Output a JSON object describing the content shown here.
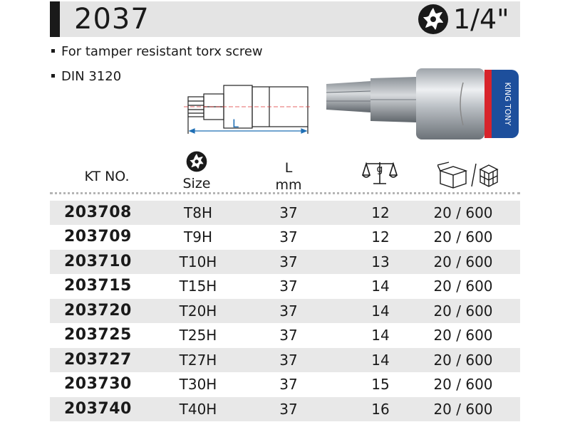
{
  "header": {
    "product_number": "2037",
    "drive_size": "1/4\""
  },
  "features": [
    "For tamper resistant torx screw",
    "DIN 3120"
  ],
  "drawing": {
    "dimension_label": "L"
  },
  "photo": {
    "brand_text": "KING TONY"
  },
  "table": {
    "headers": {
      "kt_no": "KT NO.",
      "size": "Size",
      "length_symbol": "L",
      "length_unit": "mm",
      "weight_symbol": "g",
      "packing_icon": "box-and-carton-icon"
    },
    "rows": [
      {
        "kt_no": "203708",
        "size": "T8H",
        "length": "37",
        "weight": "12",
        "pack": "20 / 600"
      },
      {
        "kt_no": "203709",
        "size": "T9H",
        "length": "37",
        "weight": "12",
        "pack": "20 / 600"
      },
      {
        "kt_no": "203710",
        "size": "T10H",
        "length": "37",
        "weight": "13",
        "pack": "20 / 600"
      },
      {
        "kt_no": "203715",
        "size": "T15H",
        "length": "37",
        "weight": "14",
        "pack": "20 / 600"
      },
      {
        "kt_no": "203720",
        "size": "T20H",
        "length": "37",
        "weight": "14",
        "pack": "20 / 600"
      },
      {
        "kt_no": "203725",
        "size": "T25H",
        "length": "37",
        "weight": "14",
        "pack": "20 / 600"
      },
      {
        "kt_no": "203727",
        "size": "T27H",
        "length": "37",
        "weight": "14",
        "pack": "20 / 600"
      },
      {
        "kt_no": "203730",
        "size": "T30H",
        "length": "37",
        "weight": "15",
        "pack": "20 / 600"
      },
      {
        "kt_no": "203740",
        "size": "T40H",
        "length": "37",
        "weight": "16",
        "pack": "20 / 600"
      }
    ]
  },
  "colors": {
    "header_bg": "#e4e4e4",
    "header_bar": "#1a1a1a",
    "row_shade": "#e8e8e8",
    "dimension_line": "#1f6fb5",
    "brand_ring": "#1d4f9c",
    "brand_accent": "#d8242b"
  }
}
